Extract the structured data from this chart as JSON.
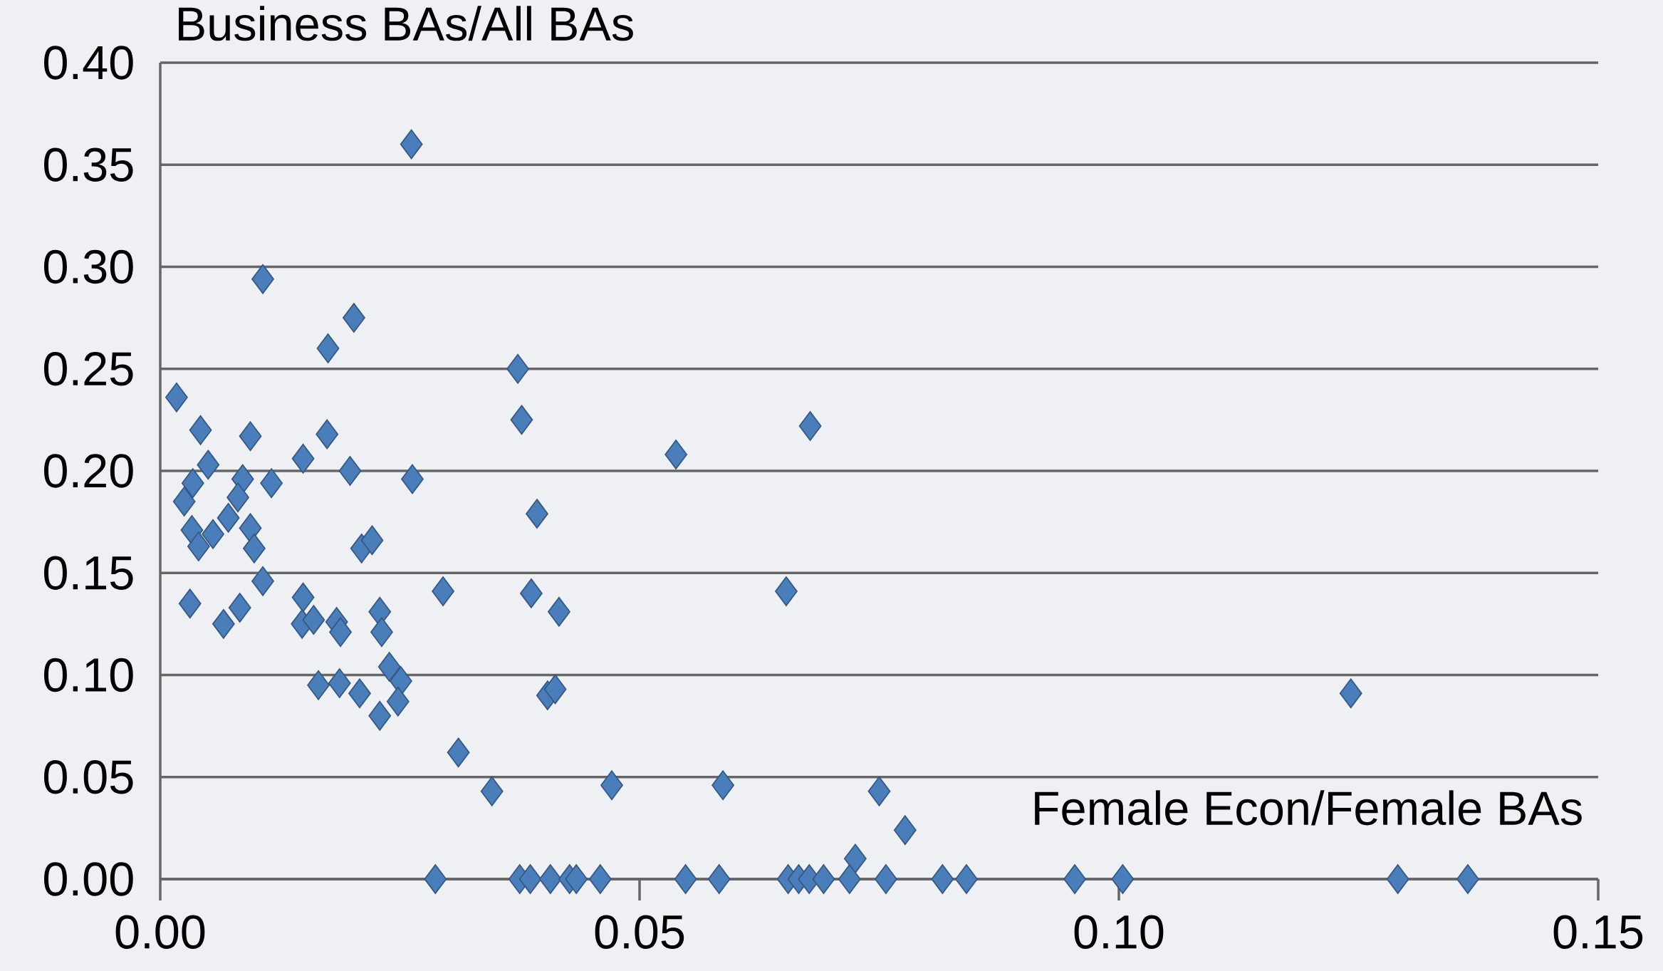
{
  "chart_data": {
    "type": "scatter",
    "xlabel": "Female Econ/Female BAs",
    "ylabel": "Business BAs/All BAs",
    "x": [
      0.0262,
      0.0107,
      0.0202,
      0.0175,
      0.0017,
      0.0373,
      0.0377,
      0.0678,
      0.0042,
      0.0094,
      0.0174,
      0.0538,
      0.0149,
      0.005,
      0.0198,
      0.0034,
      0.0086,
      0.0116,
      0.0263,
      0.0025,
      0.0081,
      0.0071,
      0.0393,
      0.0033,
      0.0055,
      0.0094,
      0.004,
      0.0098,
      0.021,
      0.0221,
      0.0107,
      0.0295,
      0.0387,
      0.0416,
      0.0653,
      0.0031,
      0.0083,
      0.0066,
      0.0149,
      0.0148,
      0.016,
      0.0184,
      0.0188,
      0.0229,
      0.0231,
      0.0239,
      0.0251,
      0.0248,
      0.0229,
      0.0165,
      0.0187,
      0.0208,
      0.0404,
      0.0412,
      0.1242,
      0.0311,
      0.0346,
      0.0471,
      0.0587,
      0.075,
      0.0777,
      0.0725,
      0.0287,
      0.0375,
      0.0386,
      0.0407,
      0.0427,
      0.0434,
      0.0459,
      0.0548,
      0.0583,
      0.0655,
      0.0666,
      0.0677,
      0.0692,
      0.0719,
      0.0757,
      0.0816,
      0.0841,
      0.0954,
      0.1004,
      0.1291,
      0.1364
    ],
    "values": [
      0.36,
      0.294,
      0.275,
      0.26,
      0.236,
      0.25,
      0.225,
      0.222,
      0.22,
      0.217,
      0.218,
      0.208,
      0.206,
      0.203,
      0.2,
      0.194,
      0.196,
      0.194,
      0.196,
      0.185,
      0.187,
      0.177,
      0.179,
      0.171,
      0.169,
      0.172,
      0.163,
      0.162,
      0.162,
      0.166,
      0.146,
      0.141,
      0.14,
      0.131,
      0.141,
      0.135,
      0.133,
      0.125,
      0.138,
      0.125,
      0.127,
      0.126,
      0.121,
      0.131,
      0.121,
      0.104,
      0.097,
      0.087,
      0.08,
      0.095,
      0.096,
      0.091,
      0.09,
      0.093,
      0.091,
      0.062,
      0.043,
      0.046,
      0.046,
      0.043,
      0.024,
      0.01,
      0,
      0,
      0,
      0,
      0,
      0,
      0,
      0,
      0,
      0,
      0,
      0,
      0,
      0,
      0,
      0,
      0,
      0,
      0,
      0,
      0
    ],
    "color": "#4a7ebb",
    "marker": "diamond",
    "grid": "y",
    "xlim": [
      0,
      0.15
    ],
    "ylim": [
      0,
      0.4
    ],
    "xticks": [
      {
        "value": 0,
        "label": "0.00"
      },
      {
        "value": 0.05,
        "label": "0.05"
      },
      {
        "value": 0.1,
        "label": "0.10"
      },
      {
        "value": 0.15,
        "label": "0.15"
      }
    ],
    "yticks": [
      {
        "value": 0,
        "label": "0.00"
      },
      {
        "value": 0.05,
        "label": "0.05"
      },
      {
        "value": 0.1,
        "label": "0.10"
      },
      {
        "value": 0.15,
        "label": "0.15"
      },
      {
        "value": 0.2,
        "label": "0.20"
      },
      {
        "value": 0.25,
        "label": "0.25"
      },
      {
        "value": 0.3,
        "label": "0.30"
      },
      {
        "value": 0.35,
        "label": "0.35"
      },
      {
        "value": 0.4,
        "label": "0.40"
      }
    ]
  }
}
